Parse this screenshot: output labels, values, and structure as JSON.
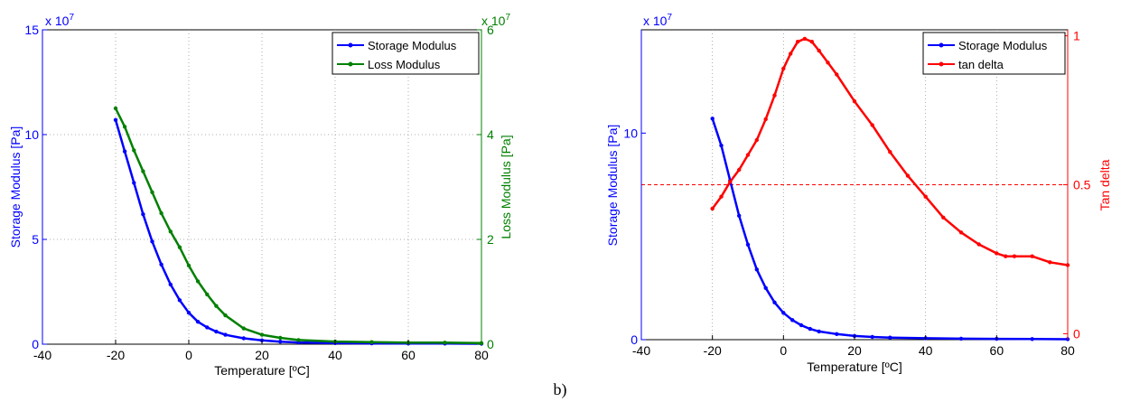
{
  "caption": "b)",
  "chart_data": [
    {
      "type": "line",
      "title": "",
      "xlabel": "Temperature [ºC]",
      "ylabel": "Storage Modulus [Pa]",
      "y2label": "Loss Modulus [Pa]",
      "xlim": [
        -40,
        80
      ],
      "ylim": [
        0,
        15
      ],
      "y2lim": [
        0,
        6
      ],
      "y_multiplier": "x 10^7",
      "y2_multiplier": "x 10^7",
      "y_multiplier_label": "x 10",
      "y_multiplier_exp": "7",
      "y2_multiplier_label": "x 10",
      "y2_multiplier_exp": "7",
      "x_ticks": [
        "-40",
        "-20",
        "0",
        "20",
        "40",
        "60",
        "80"
      ],
      "y_ticks": [
        "0",
        "5",
        "10",
        "15"
      ],
      "y2_ticks": [
        "0",
        "2",
        "4",
        "6"
      ],
      "grid": true,
      "legend": "top-right",
      "series": [
        {
          "name": "Storage Modulus",
          "axis": "left",
          "color": "#0000ff",
          "x": [
            -20,
            -17.5,
            -15,
            -12.5,
            -10,
            -7.5,
            -5,
            -2.5,
            0,
            2.5,
            5,
            7.5,
            10,
            15,
            20,
            25,
            30,
            40,
            50,
            60,
            70,
            80
          ],
          "y": [
            10.7,
            9.2,
            7.7,
            6.2,
            4.9,
            3.8,
            2.85,
            2.1,
            1.5,
            1.07,
            0.8,
            0.6,
            0.45,
            0.28,
            0.18,
            0.12,
            0.08,
            0.05,
            0.04,
            0.03,
            0.03,
            0.02
          ]
        },
        {
          "name": "Loss Modulus",
          "axis": "right",
          "color": "#008000",
          "x": [
            -20,
            -17.5,
            -15,
            -12.5,
            -10,
            -7.5,
            -5,
            -2.5,
            0,
            2.5,
            5,
            7.5,
            10,
            15,
            20,
            25,
            30,
            40,
            50,
            60,
            70,
            80
          ],
          "y": [
            4.5,
            4.15,
            3.7,
            3.3,
            2.9,
            2.5,
            2.15,
            1.85,
            1.5,
            1.2,
            0.95,
            0.73,
            0.55,
            0.3,
            0.18,
            0.12,
            0.08,
            0.05,
            0.04,
            0.03,
            0.03,
            0.02
          ]
        }
      ]
    },
    {
      "type": "line",
      "title": "",
      "xlabel": "Temperature [ºC]",
      "ylabel": "Storage Modulus [Pa]",
      "y2label": "Tan delta",
      "xlim": [
        -40,
        80
      ],
      "ylim": [
        0,
        15
      ],
      "y2lim": [
        -0.02,
        1.02
      ],
      "y_multiplier": "x 10^7",
      "y_multiplier_label": "x 10",
      "y_multiplier_exp": "7",
      "x_ticks": [
        "-40",
        "-20",
        "0",
        "20",
        "40",
        "60",
        "80"
      ],
      "y_ticks": [
        "0",
        "10"
      ],
      "y_tick_values": [
        0,
        10
      ],
      "y2_ticks": [
        "0",
        "0.5",
        "1"
      ],
      "y2_tick_values": [
        0,
        0.5,
        1
      ],
      "grid": true,
      "legend": "top-right",
      "reference_line": {
        "axis": "right",
        "value": 0.5,
        "color": "#ff0000"
      },
      "series": [
        {
          "name": "Storage Modulus",
          "axis": "left",
          "color": "#0000ff",
          "x": [
            -20,
            -17.5,
            -15,
            -12.5,
            -10,
            -7.5,
            -5,
            -2.5,
            0,
            2.5,
            5,
            7.5,
            10,
            15,
            20,
            25,
            30,
            40,
            50,
            60,
            70,
            80
          ],
          "y": [
            10.7,
            9.4,
            7.7,
            6.0,
            4.6,
            3.4,
            2.5,
            1.8,
            1.3,
            0.95,
            0.7,
            0.52,
            0.4,
            0.27,
            0.18,
            0.13,
            0.1,
            0.07,
            0.05,
            0.04,
            0.03,
            0.02
          ]
        },
        {
          "name": "tan delta",
          "axis": "right",
          "color": "#ff0000",
          "x": [
            -20,
            -17.5,
            -15,
            -12.5,
            -10,
            -7.5,
            -5,
            -2.5,
            0,
            2,
            4,
            6,
            8,
            10,
            12.5,
            15,
            20,
            25,
            30,
            35,
            40,
            45,
            50,
            55,
            60,
            62.5,
            65,
            70,
            75,
            80
          ],
          "y": [
            0.42,
            0.46,
            0.51,
            0.55,
            0.6,
            0.65,
            0.72,
            0.8,
            0.89,
            0.94,
            0.98,
            0.99,
            0.98,
            0.95,
            0.91,
            0.87,
            0.78,
            0.7,
            0.61,
            0.53,
            0.46,
            0.39,
            0.34,
            0.3,
            0.27,
            0.26,
            0.26,
            0.26,
            0.24,
            0.23
          ]
        }
      ]
    }
  ]
}
